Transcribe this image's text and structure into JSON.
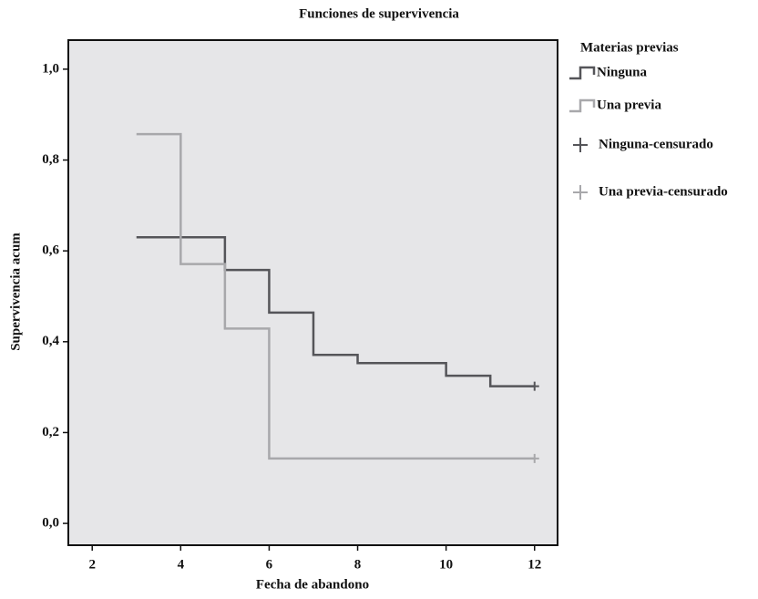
{
  "chart_data": {
    "type": "step",
    "title": "Funciones de supervivencia",
    "x_label": "Fecha de abandono",
    "y_label": "Supervivencia acum",
    "legend_title": "Materias previas",
    "xlim": [
      1.46,
      12.52
    ],
    "ylim": [
      -0.048,
      1.064
    ],
    "xticks": [
      2,
      4,
      6,
      8,
      10,
      12
    ],
    "yticks": [
      {
        "value": 0,
        "label": "0,0"
      },
      {
        "value": 0.2,
        "label": "0,2"
      },
      {
        "value": 0.4,
        "label": "0,4"
      },
      {
        "value": 0.6,
        "label": "0,6"
      },
      {
        "value": 0.8,
        "label": "0,8"
      },
      {
        "value": 1,
        "label": "1,0"
      }
    ],
    "series": [
      {
        "name": "Ninguna",
        "color": "#555559",
        "mark": "step",
        "x": [
          3,
          5,
          6,
          7,
          8,
          10,
          11,
          12
        ],
        "values": [
          0.63,
          0.558,
          0.464,
          0.371,
          0.353,
          0.325,
          0.302,
          0.302
        ]
      },
      {
        "name": "Una previa",
        "color": "#a8a8ab",
        "mark": "step",
        "x": [
          3,
          4,
          5,
          6,
          12
        ],
        "values": [
          0.857,
          0.571,
          0.429,
          0.143,
          0.143
        ]
      },
      {
        "name": "Ninguna-censurado",
        "color": "#555559",
        "mark": "plus",
        "x": [
          12
        ],
        "values": [
          0.302
        ]
      },
      {
        "name": "Una previa-censurado",
        "color": "#a8a8ab",
        "mark": "plus",
        "x": [
          12
        ],
        "values": [
          0.143
        ]
      }
    ]
  }
}
